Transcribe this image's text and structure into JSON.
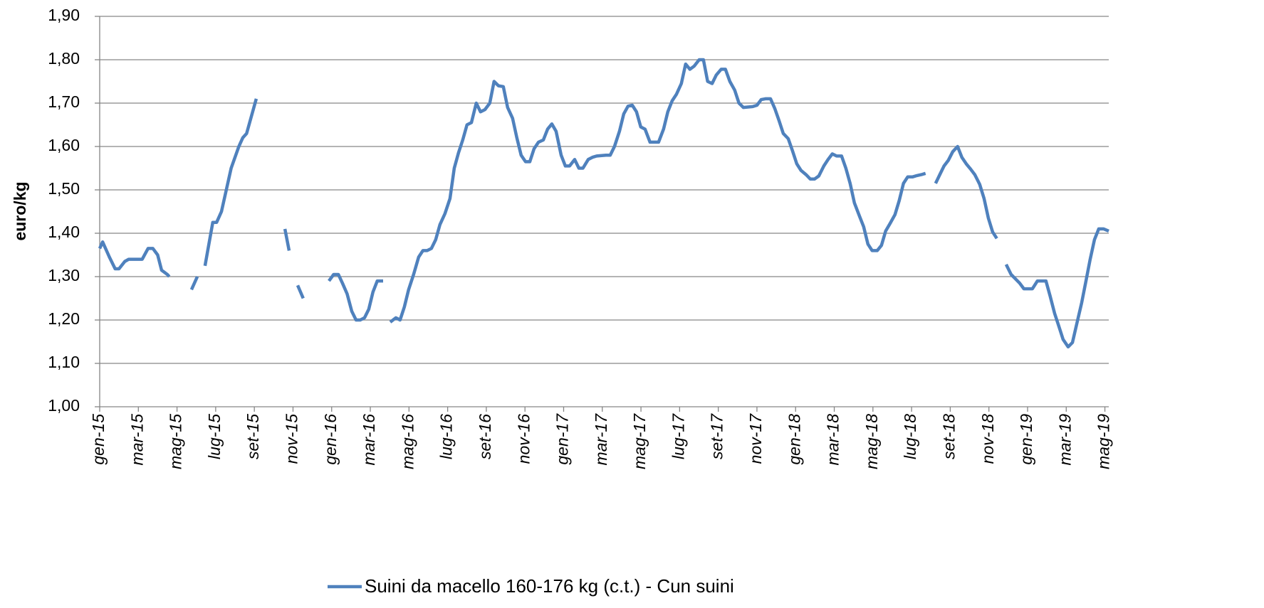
{
  "chart_data": {
    "type": "line",
    "ylabel": "euro/kg",
    "x": [
      0,
      0.15,
      0.5,
      0.8,
      1.0,
      1.3,
      1.5,
      2.2,
      2.5,
      2.75,
      3.0,
      3.2,
      3.5,
      3.6,
      4.2,
      4.75,
      5.05,
      5.25,
      5.45,
      5.85,
      6.05,
      6.3,
      6.8,
      7.2,
      7.4,
      7.6,
      8.1,
      8.8,
      9.58,
      9.8,
      10.0,
      10.24,
      10.53,
      11.2,
      11.86,
      12.1,
      12.35,
      12.56,
      12.8,
      13.04,
      13.26,
      13.48,
      13.7,
      13.92,
      14.14,
      14.36,
      14.66,
      14.85,
      15.03,
      15.32,
      15.54,
      15.76,
      15.98,
      16.24,
      16.5,
      16.72,
      16.94,
      17.16,
      17.38,
      17.6,
      17.86,
      18.12,
      18.34,
      18.56,
      18.78,
      19.0,
      19.23,
      19.48,
      19.7,
      19.93,
      20.18,
      20.4,
      20.63,
      20.88,
      21.1,
      21.36,
      21.58,
      21.8,
      22.03,
      22.25,
      22.47,
      22.7,
      22.95,
      23.17,
      23.39,
      23.61,
      23.87,
      24.09,
      24.31,
      24.57,
      24.79,
      25.0,
      25.27,
      25.49,
      25.71,
      26.19,
      26.41,
      26.63,
      26.89,
      27.11,
      27.33,
      27.55,
      27.77,
      27.99,
      28.21,
      28.47,
      28.91,
      29.17,
      29.39,
      29.61,
      29.83,
      30.09,
      30.31,
      30.53,
      30.75,
      31.01,
      31.23,
      31.45,
      31.68,
      31.9,
      32.15,
      32.37,
      32.6,
      32.85,
      33.07,
      33.3,
      33.78,
      34.0,
      34.22,
      34.44,
      34.7,
      34.92,
      35.14,
      35.36,
      35.62,
      35.84,
      36.06,
      36.28,
      36.54,
      36.76,
      36.98,
      37.2,
      37.46,
      37.68,
      37.9,
      38.12,
      38.38,
      38.6,
      38.82,
      39.04,
      39.3,
      39.52,
      39.74,
      39.96,
      40.22,
      40.44,
      40.66,
      40.88,
      41.14,
      41.36,
      41.58,
      41.8,
      42.06,
      42.28,
      42.5,
      42.72,
      43.0,
      43.24,
      43.46,
      43.68,
      43.9,
      44.13,
      44.38,
      44.6,
      44.83,
      45.05,
      45.27,
      45.52,
      45.75,
      45.97,
      46.19,
      46.41,
      46.65,
      46.89,
      47.15,
      47.37,
      47.59,
      47.81,
      48.03,
      48.25,
      48.51,
      48.73,
      48.95,
      49.17,
      49.4,
      49.62,
      49.84,
      50.1,
      50.32,
      50.54,
      50.8,
      51.02,
      51.24,
      51.46,
      51.68,
      51.94,
      52.2
    ],
    "series": [
      {
        "name": "Suini da macello 160-176 kg  (c.t.) - Cun suini",
        "color": "#4f81bd",
        "values": [
          1.365,
          1.38,
          1.345,
          1.318,
          1.318,
          1.335,
          1.34,
          1.34,
          1.365,
          1.365,
          1.35,
          1.315,
          1.305,
          1.3,
          null,
          1.27,
          1.3,
          null,
          1.325,
          1.425,
          1.425,
          1.45,
          1.55,
          1.6,
          1.62,
          1.63,
          1.71,
          null,
          1.41,
          1.36,
          null,
          1.28,
          1.25,
          null,
          1.29,
          1.305,
          1.305,
          1.285,
          1.26,
          1.22,
          1.2,
          1.2,
          1.205,
          1.225,
          1.265,
          1.29,
          1.29,
          null,
          1.195,
          1.205,
          1.2,
          1.23,
          1.27,
          1.305,
          1.345,
          1.36,
          1.36,
          1.365,
          1.385,
          1.42,
          1.445,
          1.48,
          1.55,
          1.585,
          1.615,
          1.65,
          1.655,
          1.7,
          1.68,
          1.685,
          1.7,
          1.75,
          1.74,
          1.738,
          1.69,
          1.665,
          1.62,
          1.58,
          1.565,
          1.565,
          1.595,
          1.61,
          1.615,
          1.64,
          1.652,
          1.635,
          1.58,
          1.555,
          1.555,
          1.57,
          1.55,
          1.55,
          1.57,
          1.575,
          1.578,
          1.58,
          1.58,
          1.6,
          1.635,
          1.675,
          1.693,
          1.695,
          1.68,
          1.645,
          1.64,
          1.61,
          1.61,
          1.64,
          1.68,
          1.705,
          1.72,
          1.745,
          1.79,
          1.778,
          1.785,
          1.8,
          1.8,
          1.75,
          1.745,
          1.765,
          1.778,
          1.778,
          1.75,
          1.73,
          1.7,
          1.69,
          1.692,
          1.695,
          1.708,
          1.71,
          1.71,
          1.688,
          1.66,
          1.63,
          1.618,
          1.59,
          1.56,
          1.545,
          1.535,
          1.525,
          1.525,
          1.532,
          1.555,
          1.57,
          1.583,
          1.578,
          1.578,
          1.55,
          1.515,
          1.47,
          1.44,
          1.415,
          1.375,
          1.36,
          1.36,
          1.372,
          1.405,
          1.422,
          1.443,
          1.475,
          1.515,
          1.53,
          1.53,
          1.533,
          1.535,
          1.538,
          null,
          1.515,
          1.535,
          1.555,
          1.568,
          1.588,
          1.6,
          1.575,
          1.56,
          1.548,
          1.535,
          1.513,
          1.48,
          1.435,
          1.403,
          1.388,
          null,
          1.328,
          1.305,
          1.295,
          1.285,
          1.272,
          1.272,
          1.272,
          1.29,
          1.29,
          1.29,
          1.255,
          1.215,
          1.185,
          1.155,
          1.138,
          1.148,
          1.19,
          1.24,
          1.29,
          1.34,
          1.385,
          1.41,
          1.41,
          1.405
        ]
      }
    ],
    "xlim": [
      0,
      52.2
    ],
    "xticks": [
      {
        "value": 0,
        "label": "gen-15"
      },
      {
        "value": 2,
        "label": "mar-15"
      },
      {
        "value": 4,
        "label": "mag-15"
      },
      {
        "value": 6,
        "label": "lug-15"
      },
      {
        "value": 8,
        "label": "set-15"
      },
      {
        "value": 10,
        "label": "nov-15"
      },
      {
        "value": 12,
        "label": "gen-16"
      },
      {
        "value": 14,
        "label": "mar-16"
      },
      {
        "value": 16,
        "label": "mag-16"
      },
      {
        "value": 18,
        "label": "lug-16"
      },
      {
        "value": 20,
        "label": "set-16"
      },
      {
        "value": 22,
        "label": "nov-16"
      },
      {
        "value": 24,
        "label": "gen-17"
      },
      {
        "value": 26,
        "label": "mar-17"
      },
      {
        "value": 28,
        "label": "mag-17"
      },
      {
        "value": 30,
        "label": "lug-17"
      },
      {
        "value": 32,
        "label": "set-17"
      },
      {
        "value": 34,
        "label": "nov-17"
      },
      {
        "value": 36,
        "label": "gen-18"
      },
      {
        "value": 38,
        "label": "mar-18"
      },
      {
        "value": 40,
        "label": "mag-18"
      },
      {
        "value": 42,
        "label": "lug-18"
      },
      {
        "value": 44,
        "label": "set-18"
      },
      {
        "value": 46,
        "label": "nov-18"
      },
      {
        "value": 48,
        "label": "gen-19"
      },
      {
        "value": 50,
        "label": "mar-19"
      },
      {
        "value": 52,
        "label": "mag-19"
      }
    ],
    "ylim": [
      1.0,
      1.9
    ],
    "yticks": [
      {
        "value": 1.0,
        "label": "1,00"
      },
      {
        "value": 1.1,
        "label": "1,10"
      },
      {
        "value": 1.2,
        "label": "1,20"
      },
      {
        "value": 1.3,
        "label": "1,30"
      },
      {
        "value": 1.4,
        "label": "1,40"
      },
      {
        "value": 1.5,
        "label": "1,50"
      },
      {
        "value": 1.6,
        "label": "1,60"
      },
      {
        "value": 1.7,
        "label": "1,70"
      },
      {
        "value": 1.8,
        "label": "1,80"
      },
      {
        "value": 1.9,
        "label": "1,90"
      }
    ],
    "grid": true,
    "legend": "bottom"
  }
}
